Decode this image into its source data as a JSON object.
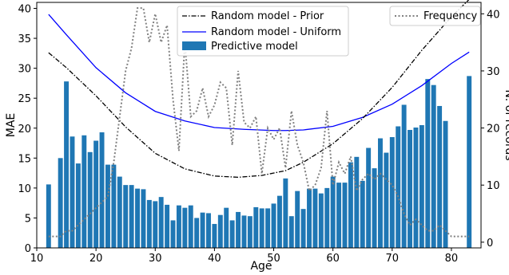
{
  "chart_data": {
    "type": "bar",
    "xlabel": "Age",
    "ylabel": "MAE",
    "ylabel_right": "N. of records",
    "xlim": [
      10,
      85
    ],
    "ylim": [
      0,
      41
    ],
    "ylim_right": [
      -1,
      42
    ],
    "xticks": [
      10,
      20,
      30,
      40,
      50,
      60,
      70,
      80
    ],
    "yticks": [
      0,
      5,
      10,
      15,
      20,
      25,
      30,
      35,
      40
    ],
    "yticks_right": [
      0,
      10,
      20,
      30,
      40
    ],
    "legend_left_position": "top-center",
    "legend_right_position": "top-right",
    "legend": {
      "prior": "Random model - Prior",
      "uniform": "Random model - Uniform",
      "predictive": "Predictive model",
      "frequency": "Frequency"
    },
    "colors": {
      "bars": "#1f77b4",
      "uniform": "#0000ff",
      "prior": "#000000",
      "frequency": "#808080"
    },
    "bars": {
      "name": "Predictive model",
      "x": [
        12,
        14,
        15,
        16,
        17,
        18,
        19,
        20,
        21,
        22,
        23,
        24,
        25,
        26,
        27,
        28,
        29,
        30,
        31,
        32,
        33,
        34,
        35,
        36,
        37,
        38,
        39,
        40,
        41,
        42,
        43,
        44,
        45,
        46,
        47,
        48,
        49,
        50,
        51,
        52,
        53,
        54,
        55,
        56,
        57,
        58,
        59,
        60,
        61,
        62,
        63,
        64,
        65,
        66,
        67,
        68,
        69,
        70,
        71,
        72,
        73,
        74,
        75,
        76,
        77,
        78,
        79,
        83
      ],
      "values": [
        10.6,
        15.0,
        27.8,
        18.6,
        14.1,
        18.8,
        16.0,
        17.9,
        19.3,
        13.9,
        13.9,
        11.9,
        10.5,
        10.5,
        9.9,
        9.8,
        8.0,
        7.8,
        8.5,
        7.2,
        4.6,
        7.1,
        6.7,
        7.1,
        5.0,
        5.9,
        5.8,
        4.0,
        5.5,
        6.7,
        4.6,
        6.0,
        5.4,
        5.3,
        6.8,
        6.6,
        6.6,
        7.4,
        8.7,
        11.6,
        5.3,
        9.5,
        6.5,
        9.9,
        9.9,
        9.1,
        10.0,
        11.9,
        10.9,
        10.9,
        14.3,
        15.2,
        11.2,
        16.7,
        13.3,
        18.3,
        15.9,
        18.5,
        20.3,
        23.9,
        19.7,
        20.1,
        20.5,
        28.2,
        27.2,
        23.7,
        21.2,
        28.7
      ]
    },
    "uniform_line": {
      "name": "Random model - Uniform",
      "x": [
        12,
        15,
        20,
        25,
        30,
        35,
        40,
        45,
        50,
        52,
        55,
        60,
        65,
        70,
        75,
        80,
        83
      ],
      "values": [
        39.0,
        35.6,
        30.1,
        25.9,
        22.8,
        21.2,
        20.1,
        19.8,
        19.6,
        19.6,
        19.7,
        20.3,
        21.8,
        24.0,
        27.1,
        30.8,
        32.7
      ]
    },
    "prior_line": {
      "name": "Random model - Prior",
      "x": [
        12,
        15,
        20,
        25,
        30,
        35,
        40,
        44,
        48,
        52,
        55,
        60,
        65,
        70,
        75,
        80,
        83
      ],
      "values": [
        32.6,
        30.1,
        25.4,
        20.2,
        15.8,
        13.2,
        12.0,
        11.8,
        12.1,
        12.9,
        14.3,
        17.4,
        21.6,
        26.8,
        33.0,
        38.6,
        41.5
      ]
    },
    "frequency_line": {
      "name": "Frequency",
      "x": [
        12,
        13,
        14,
        15,
        16,
        17,
        18,
        19,
        20,
        21,
        22,
        23,
        24,
        25,
        26,
        27,
        28,
        29,
        30,
        31,
        32,
        33,
        34,
        35,
        36,
        37,
        38,
        39,
        40,
        41,
        42,
        43,
        44,
        45,
        46,
        47,
        48,
        49,
        50,
        51,
        52,
        53,
        54,
        55,
        56,
        57,
        58,
        59,
        60,
        61,
        62,
        63,
        64,
        65,
        66,
        67,
        68,
        69,
        70,
        71,
        72,
        73,
        74,
        75,
        76,
        77,
        78,
        79,
        80,
        81,
        82,
        83
      ],
      "values": [
        1,
        1,
        1,
        2,
        2,
        3,
        4,
        5,
        6,
        7,
        8,
        14,
        22,
        30,
        34,
        41,
        41,
        35,
        40,
        35,
        38,
        25,
        16,
        35,
        22,
        23,
        27,
        22,
        24,
        28,
        27,
        17,
        30,
        21,
        20,
        22,
        12,
        20,
        18,
        20,
        13,
        23,
        17,
        14,
        9,
        10,
        13,
        23,
        10,
        14,
        12,
        15,
        9,
        11,
        12,
        11,
        12,
        11,
        10,
        8,
        5,
        3,
        4,
        3,
        2,
        2,
        3,
        2,
        1,
        1,
        1,
        1
      ]
    }
  }
}
